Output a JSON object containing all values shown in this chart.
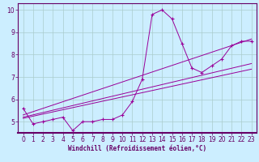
{
  "xlabel": "Windchill (Refroidissement éolien,°C)",
  "bg_color": "#cceeff",
  "line_color": "#990099",
  "grid_color": "#aacccc",
  "axis_color": "#660066",
  "axis_bg_color": "#660066",
  "xlim": [
    -0.5,
    23.5
  ],
  "ylim": [
    4.5,
    10.3
  ],
  "yticks": [
    5,
    6,
    7,
    8,
    9,
    10
  ],
  "xticks": [
    0,
    1,
    2,
    3,
    4,
    5,
    6,
    7,
    8,
    9,
    10,
    11,
    12,
    13,
    14,
    15,
    16,
    17,
    18,
    19,
    20,
    21,
    22,
    23
  ],
  "main_x": [
    0,
    1,
    2,
    3,
    4,
    5,
    6,
    7,
    8,
    9,
    10,
    11,
    12,
    13,
    14,
    15,
    16,
    17,
    18,
    19,
    20,
    21,
    22,
    23
  ],
  "main_y": [
    5.6,
    4.9,
    5.0,
    5.1,
    5.2,
    4.6,
    5.0,
    5.0,
    5.1,
    5.1,
    5.3,
    5.9,
    6.9,
    9.8,
    10.0,
    9.6,
    8.5,
    7.4,
    7.2,
    7.5,
    7.8,
    8.4,
    8.6,
    8.6
  ],
  "line1_x": [
    0,
    23
  ],
  "line1_y": [
    5.15,
    7.35
  ],
  "line2_x": [
    0,
    23
  ],
  "line2_y": [
    5.2,
    7.6
  ],
  "line3_x": [
    0,
    23
  ],
  "line3_y": [
    5.3,
    8.7
  ]
}
